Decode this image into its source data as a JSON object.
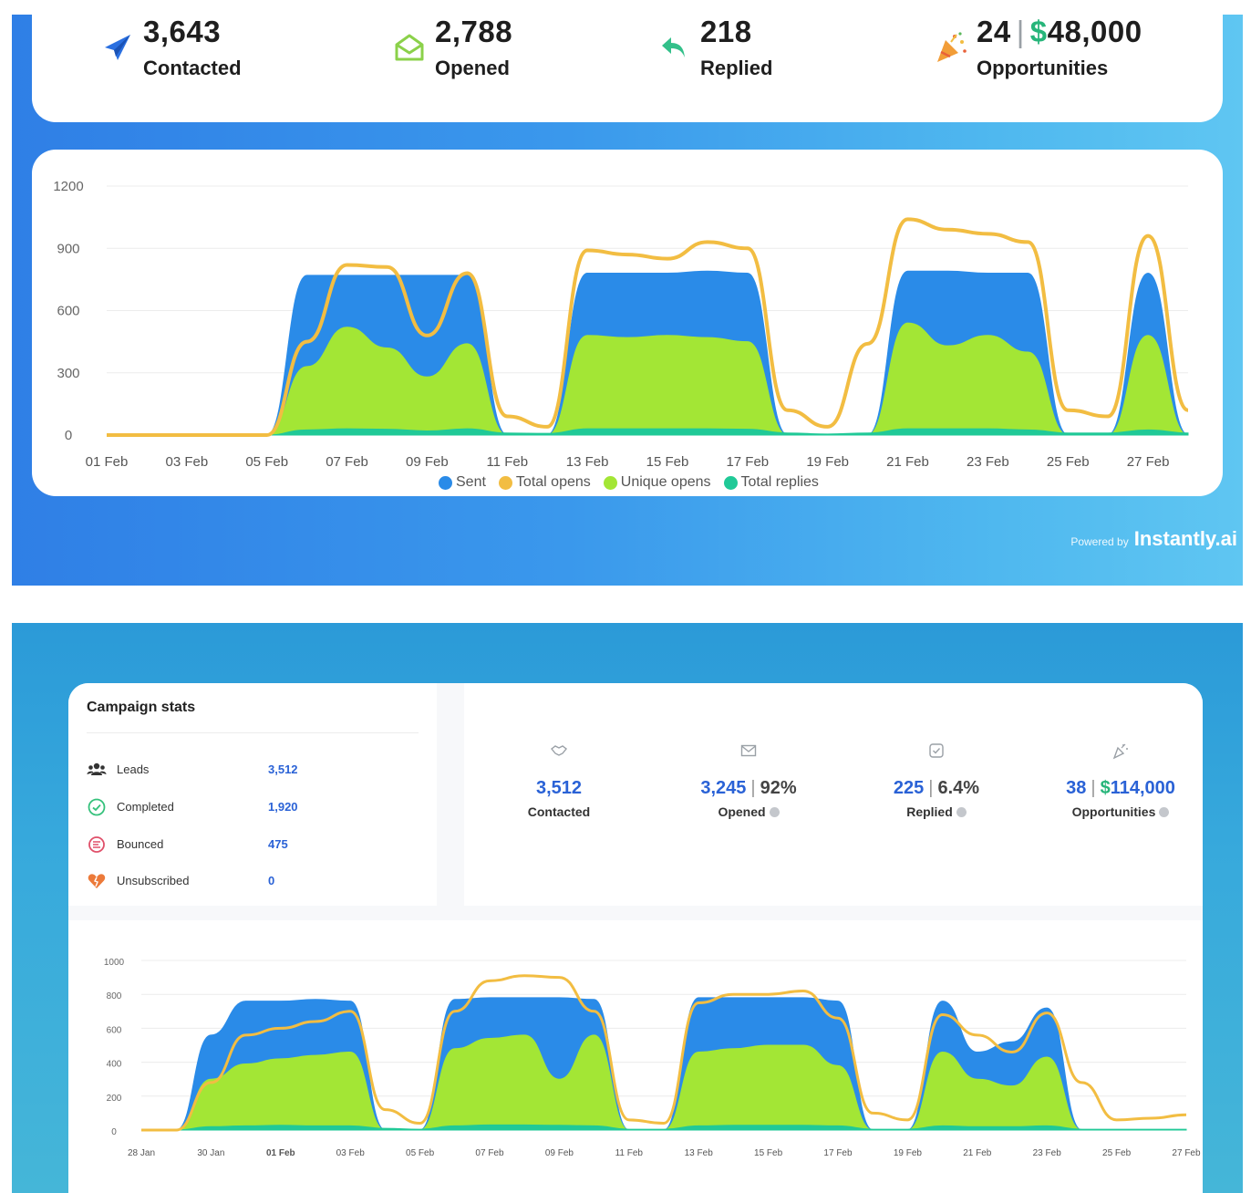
{
  "panel1": {
    "stats": [
      {
        "icon": "paper-plane-icon",
        "value": "3,643",
        "label": "Contacted"
      },
      {
        "icon": "open-envelope-icon",
        "value": "2,788",
        "label": "Opened"
      },
      {
        "icon": "reply-arrow-icon",
        "value": "218",
        "label": "Replied"
      },
      {
        "icon": "party-popper-icon",
        "value": "24",
        "money_sign": "$",
        "money": "48,000",
        "label": "Opportunities"
      }
    ],
    "powered_by": "Powered by",
    "brand": "Instantly.ai"
  },
  "campaign": {
    "title": "Campaign stats",
    "rows": [
      {
        "icon": "people-icon",
        "label": "Leads",
        "value": "3,512"
      },
      {
        "icon": "check-circle-icon",
        "label": "Completed",
        "value": "1,920"
      },
      {
        "icon": "bounce-icon",
        "label": "Bounced",
        "value": "475"
      },
      {
        "icon": "broken-heart-icon",
        "label": "Unsubscribed",
        "value": "0"
      }
    ]
  },
  "panel2": {
    "stats": [
      {
        "icon": "handshake-icon",
        "value": "3,512",
        "label": "Contacted"
      },
      {
        "icon": "envelope-icon",
        "value": "3,245",
        "pct": "92%",
        "label": "Opened"
      },
      {
        "icon": "checkbox-icon",
        "value": "225",
        "pct": "6.4%",
        "label": "Replied"
      },
      {
        "icon": "party-popper-icon",
        "value": "38",
        "money_sign": "$",
        "money": "114,000",
        "label": "Opportunities"
      }
    ]
  },
  "colors": {
    "sent": "#2a8be8",
    "total_opens": "#f2bd42",
    "unique_opens": "#a3e635",
    "total_replies": "#20c997"
  },
  "chart_data": [
    {
      "type": "area",
      "x": [
        "01 Feb",
        "02 Feb",
        "03 Feb",
        "04 Feb",
        "05 Feb",
        "06 Feb",
        "07 Feb",
        "08 Feb",
        "09 Feb",
        "10 Feb",
        "11 Feb",
        "12 Feb",
        "13 Feb",
        "14 Feb",
        "15 Feb",
        "16 Feb",
        "17 Feb",
        "18 Feb",
        "19 Feb",
        "20 Feb",
        "21 Feb",
        "22 Feb",
        "23 Feb",
        "24 Feb",
        "25 Feb",
        "26 Feb",
        "27 Feb",
        "28 Feb"
      ],
      "tick_labels": [
        "01 Feb",
        "03 Feb",
        "05 Feb",
        "07 Feb",
        "09 Feb",
        "11 Feb",
        "13 Feb",
        "15 Feb",
        "17 Feb",
        "19 Feb",
        "21 Feb",
        "23 Feb",
        "25 Feb",
        "27 Feb"
      ],
      "ylim": [
        0,
        1200
      ],
      "yticks": [
        "0",
        "300",
        "600",
        "900",
        "1200"
      ],
      "grid": true,
      "legend_position": "bottom",
      "series": [
        {
          "name": "Sent",
          "type": "area",
          "values": [
            0,
            0,
            0,
            0,
            0,
            770,
            770,
            770,
            770,
            770,
            0,
            0,
            780,
            780,
            780,
            790,
            780,
            0,
            0,
            0,
            790,
            790,
            780,
            780,
            0,
            0,
            780,
            0
          ]
        },
        {
          "name": "Total opens",
          "type": "line",
          "values": [
            0,
            0,
            0,
            0,
            0,
            450,
            820,
            810,
            480,
            780,
            90,
            40,
            890,
            870,
            850,
            930,
            900,
            120,
            40,
            440,
            1040,
            990,
            970,
            930,
            120,
            90,
            960,
            120
          ]
        },
        {
          "name": "Unique opens",
          "type": "area",
          "values": [
            0,
            0,
            0,
            0,
            0,
            330,
            520,
            420,
            280,
            440,
            0,
            0,
            480,
            470,
            480,
            470,
            450,
            0,
            0,
            0,
            540,
            430,
            480,
            400,
            0,
            0,
            480,
            0
          ]
        },
        {
          "name": "Total replies",
          "type": "area",
          "values": [
            0,
            0,
            0,
            0,
            0,
            25,
            30,
            28,
            20,
            30,
            10,
            8,
            30,
            30,
            30,
            30,
            28,
            10,
            5,
            10,
            30,
            30,
            30,
            25,
            10,
            10,
            25,
            10
          ]
        }
      ]
    },
    {
      "type": "area",
      "x": [
        "28 Jan",
        "29 Jan",
        "30 Jan",
        "31 Jan",
        "01 Feb",
        "02 Feb",
        "03 Feb",
        "04 Feb",
        "05 Feb",
        "06 Feb",
        "07 Feb",
        "08 Feb",
        "09 Feb",
        "10 Feb",
        "11 Feb",
        "12 Feb",
        "13 Feb",
        "14 Feb",
        "15 Feb",
        "16 Feb",
        "17 Feb",
        "18 Feb",
        "19 Feb",
        "20 Feb",
        "21 Feb",
        "22 Feb",
        "23 Feb",
        "24 Feb",
        "25 Feb",
        "26 Feb",
        "27 Feb"
      ],
      "tick_labels": [
        "28 Jan",
        "30 Jan",
        "01 Feb",
        "03 Feb",
        "05 Feb",
        "07 Feb",
        "09 Feb",
        "11 Feb",
        "13 Feb",
        "15 Feb",
        "17 Feb",
        "19 Feb",
        "21 Feb",
        "23 Feb",
        "25 Feb",
        "27 Feb"
      ],
      "ylim": [
        0,
        1000
      ],
      "yticks": [
        "0",
        "200",
        "400",
        "600",
        "800",
        "1000"
      ],
      "grid": true,
      "legend_position": "bottom",
      "series": [
        {
          "name": "Sent",
          "type": "area",
          "values": [
            0,
            0,
            560,
            760,
            760,
            770,
            760,
            0,
            0,
            770,
            780,
            780,
            780,
            770,
            0,
            0,
            780,
            780,
            780,
            780,
            760,
            0,
            0,
            760,
            460,
            520,
            720,
            0,
            0,
            0,
            0
          ]
        },
        {
          "name": "Total opens",
          "type": "line",
          "values": [
            0,
            0,
            280,
            560,
            600,
            640,
            700,
            120,
            40,
            700,
            880,
            910,
            900,
            700,
            60,
            40,
            750,
            800,
            800,
            820,
            660,
            100,
            60,
            680,
            560,
            460,
            690,
            280,
            60,
            70,
            90
          ]
        },
        {
          "name": "Unique opens",
          "type": "area",
          "values": [
            0,
            0,
            300,
            390,
            420,
            440,
            460,
            0,
            0,
            480,
            540,
            560,
            300,
            560,
            0,
            0,
            460,
            480,
            500,
            500,
            380,
            0,
            0,
            460,
            300,
            260,
            430,
            0,
            0,
            0,
            0
          ]
        },
        {
          "name": "Total replies",
          "type": "area",
          "values": [
            0,
            0,
            20,
            25,
            28,
            25,
            25,
            10,
            5,
            25,
            30,
            30,
            28,
            25,
            5,
            5,
            25,
            28,
            28,
            28,
            25,
            5,
            5,
            25,
            20,
            20,
            25,
            5,
            5,
            5,
            5
          ]
        }
      ]
    }
  ]
}
